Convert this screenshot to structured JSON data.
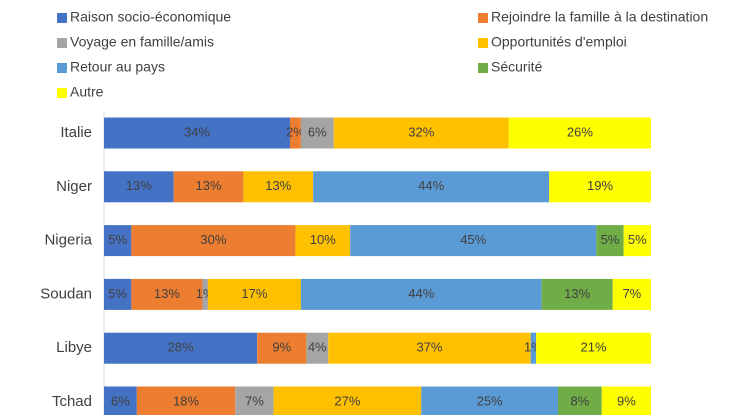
{
  "chart_data": {
    "type": "bar",
    "orientation": "horizontal",
    "stacked": "percent",
    "categories": [
      "Italie",
      "Niger",
      "Nigeria",
      "Soudan",
      "Libye",
      "Tchad"
    ],
    "series": [
      {
        "name": "Raison socio-économique",
        "color": "#4472c4",
        "values": [
          34,
          13,
          5,
          5,
          28,
          6
        ],
        "value_labels": [
          "34%",
          "13%",
          "5%",
          "5%",
          "28%",
          "6%"
        ]
      },
      {
        "name": "Rejoindre la famille à la destination",
        "color": "#ed7d31",
        "values": [
          2,
          13,
          30,
          13,
          9,
          18
        ],
        "value_labels": [
          "2%",
          "13%",
          "30%",
          "13%",
          "9%",
          "18%"
        ]
      },
      {
        "name": "Voyage en famille/amis",
        "color": "#a5a5a5",
        "values": [
          6,
          null,
          null,
          1,
          4,
          7
        ],
        "value_labels": [
          "6%",
          null,
          null,
          "1%",
          "4%",
          "7%"
        ]
      },
      {
        "name": "Opportunités d'emploi",
        "color": "#ffc000",
        "values": [
          32,
          13,
          10,
          17,
          37,
          27
        ],
        "value_labels": [
          "32%",
          "13%",
          "10%",
          "17%",
          "37%",
          "27%"
        ]
      },
      {
        "name": "Retour au pays",
        "color": "#5b9bd5",
        "values": [
          null,
          44,
          45,
          44,
          1,
          25
        ],
        "value_labels": [
          null,
          "44%",
          "45%",
          "44%",
          "1%",
          "25%"
        ]
      },
      {
        "name": "Sécurité",
        "color": "#70ad47",
        "values": [
          null,
          null,
          5,
          13,
          null,
          8
        ],
        "value_labels": [
          null,
          null,
          "5%",
          "13%",
          null,
          "8%"
        ]
      },
      {
        "name": "Autre",
        "color": "#ffff00",
        "values": [
          26,
          19,
          5,
          7,
          21,
          9
        ],
        "value_labels": [
          "26%",
          "19%",
          "5%",
          "7%",
          "21%",
          "9%"
        ]
      }
    ]
  }
}
